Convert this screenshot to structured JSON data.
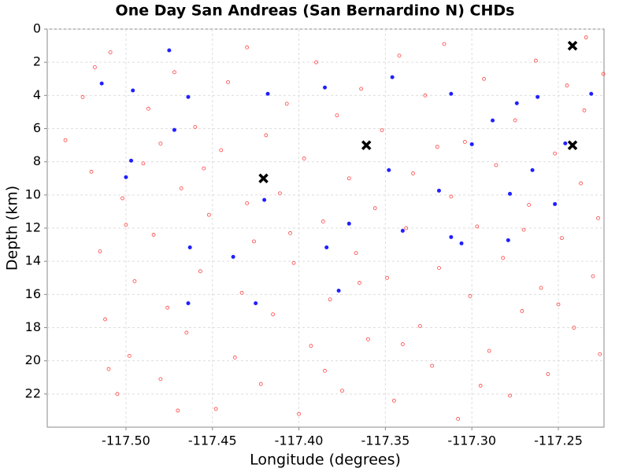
{
  "chart_data": {
    "type": "scatter",
    "title": "One Day San Andreas (San Bernardino N) CHDs",
    "xlabel": "Longitude (degrees)",
    "ylabel": "Depth (km)",
    "xlim": [
      -117.5455,
      -117.2236
    ],
    "ylim": [
      24,
      0
    ],
    "xticks": [
      {
        "value": -117.5,
        "label": "-117.50"
      },
      -117.45,
      {
        "value": -117.4,
        "label": "-117.40"
      },
      -117.35,
      {
        "value": -117.3,
        "label": "-117.30"
      },
      -117.25
    ],
    "yticks": [
      0,
      2,
      4,
      6,
      8,
      10,
      12,
      14,
      16,
      18,
      20,
      22
    ],
    "grid": true,
    "series": [
      {
        "color": "#ff4040",
        "marker": "circle-open",
        "x": [
          -117.535,
          -117.525,
          -117.518,
          -117.515,
          -117.512,
          -117.509,
          -117.505,
          -117.502,
          -117.498,
          -117.495,
          -117.49,
          -117.487,
          -117.484,
          -117.48,
          -117.476,
          -117.472,
          -117.468,
          -117.465,
          -117.46,
          -117.457,
          -117.452,
          -117.448,
          -117.445,
          -117.441,
          -117.437,
          -117.433,
          -117.43,
          -117.426,
          -117.422,
          -117.419,
          -117.415,
          -117.411,
          -117.407,
          -117.403,
          -117.4,
          -117.397,
          -117.393,
          -117.39,
          -117.386,
          -117.382,
          -117.378,
          -117.375,
          -117.371,
          -117.367,
          -117.364,
          -117.36,
          -117.356,
          -117.352,
          -117.349,
          -117.345,
          -117.342,
          -117.338,
          -117.334,
          -117.33,
          -117.327,
          -117.323,
          -117.319,
          -117.316,
          -117.312,
          -117.308,
          -117.304,
          -117.301,
          -117.297,
          -117.293,
          -117.29,
          -117.286,
          -117.282,
          -117.278,
          -117.275,
          -117.271,
          -117.267,
          -117.263,
          -117.26,
          -117.256,
          -117.252,
          -117.248,
          -117.245,
          -117.241,
          -117.237,
          -117.234,
          -117.23,
          -117.227,
          -117.224,
          -117.226,
          -117.52,
          -117.5,
          -117.48,
          -117.455,
          -117.43,
          -117.405,
          -117.385,
          -117.365,
          -117.34,
          -117.32,
          -117.295,
          -117.27,
          -117.25,
          -117.235,
          -117.51,
          -117.47
        ],
        "y": [
          6.7,
          4.1,
          2.3,
          13.4,
          17.5,
          1.4,
          22.0,
          10.2,
          19.7,
          15.2,
          8.1,
          4.8,
          12.4,
          21.1,
          16.8,
          2.6,
          9.6,
          18.3,
          5.9,
          14.6,
          11.2,
          22.9,
          7.3,
          3.2,
          19.8,
          15.9,
          1.1,
          12.8,
          21.4,
          6.4,
          17.2,
          9.9,
          4.5,
          14.1,
          23.2,
          7.8,
          19.1,
          2.0,
          11.6,
          16.3,
          5.2,
          21.8,
          9.0,
          13.5,
          3.6,
          18.7,
          10.8,
          6.1,
          15.0,
          22.4,
          1.6,
          12.0,
          8.7,
          17.9,
          4.0,
          20.3,
          14.4,
          0.9,
          10.1,
          23.5,
          6.8,
          16.1,
          11.9,
          3.0,
          19.4,
          8.2,
          13.8,
          22.1,
          5.5,
          17.0,
          10.6,
          1.9,
          15.6,
          20.8,
          7.5,
          12.6,
          3.4,
          18.0,
          9.3,
          0.5,
          14.9,
          11.4,
          2.7,
          19.6,
          8.6,
          11.8,
          6.9,
          8.4,
          10.5,
          12.3,
          20.6,
          15.3,
          19.0,
          7.1,
          21.5,
          12.1,
          16.6,
          4.9,
          20.5,
          23.0
        ]
      },
      {
        "color": "#2020ff",
        "marker": "circle",
        "x": [
          -117.475,
          -117.514,
          -117.496,
          -117.464,
          -117.418,
          -117.385,
          -117.346,
          -117.312,
          -117.274,
          -117.262,
          -117.231,
          -117.472,
          -117.288,
          -117.3,
          -117.497,
          -117.348,
          -117.265,
          -117.5,
          -117.42,
          -117.319,
          -117.278,
          -117.252,
          -117.371,
          -117.34,
          -117.312,
          -117.306,
          -117.279,
          -117.384,
          -117.463,
          -117.438,
          -117.377,
          -117.464,
          -117.425,
          -117.246
        ],
        "y": [
          1.28,
          3.28,
          3.7,
          4.09,
          3.9,
          3.52,
          2.9,
          3.9,
          4.47,
          4.09,
          3.9,
          6.08,
          5.51,
          6.94,
          7.93,
          8.5,
          8.5,
          8.93,
          10.3,
          9.74,
          9.93,
          10.55,
          11.73,
          12.16,
          12.54,
          12.92,
          12.73,
          13.16,
          13.16,
          13.73,
          15.77,
          16.53,
          16.53,
          6.89
        ]
      },
      {
        "color": "#000000",
        "marker": "x",
        "x": [
          -117.2418,
          -117.361,
          -117.2418,
          -117.4205
        ],
        "y": [
          1.0,
          7.0,
          7.0,
          9.0
        ]
      }
    ]
  }
}
